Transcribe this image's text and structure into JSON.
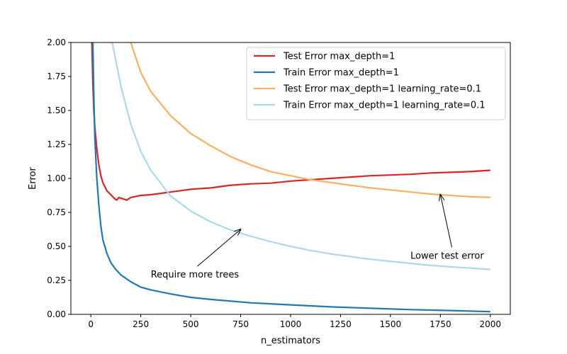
{
  "chart_data": {
    "type": "line",
    "xlabel": "n_estimators",
    "ylabel": "Error",
    "xlim": [
      -100,
      2100
    ],
    "ylim": [
      0,
      2.0
    ],
    "x_ticks": [
      0,
      250,
      500,
      750,
      1000,
      1250,
      1500,
      1750,
      2000
    ],
    "y_ticks": [
      0.0,
      0.25,
      0.5,
      0.75,
      1.0,
      1.25,
      1.5,
      1.75,
      2.0
    ],
    "x_tick_labels": [
      "0",
      "250",
      "500",
      "750",
      "1000",
      "1250",
      "1500",
      "1750",
      "2000"
    ],
    "y_tick_labels": [
      "0.00",
      "0.25",
      "0.50",
      "0.75",
      "1.00",
      "1.25",
      "1.50",
      "1.75",
      "2.00"
    ],
    "legend_position": "top-right",
    "grid": false,
    "series": [
      {
        "name": "Test Error max_depth=1",
        "color": "#d62728",
        "x": [
          0,
          5,
          10,
          15,
          20,
          30,
          40,
          50,
          60,
          70,
          80,
          100,
          120,
          130,
          140,
          160,
          180,
          200,
          250,
          300,
          350,
          400,
          450,
          500,
          600,
          700,
          800,
          900,
          1000,
          1100,
          1200,
          1300,
          1400,
          1500,
          1600,
          1700,
          1800,
          1900,
          2000
        ],
        "values": [
          2.6,
          2.0,
          1.7,
          1.5,
          1.38,
          1.22,
          1.1,
          1.02,
          0.97,
          0.94,
          0.91,
          0.88,
          0.85,
          0.84,
          0.86,
          0.85,
          0.84,
          0.86,
          0.875,
          0.88,
          0.89,
          0.9,
          0.91,
          0.92,
          0.93,
          0.95,
          0.96,
          0.965,
          0.98,
          0.99,
          1.0,
          1.01,
          1.02,
          1.025,
          1.03,
          1.04,
          1.045,
          1.05,
          1.06
        ]
      },
      {
        "name": "Train Error max_depth=1",
        "color": "#1f77b4",
        "x": [
          5,
          10,
          15,
          20,
          30,
          40,
          50,
          60,
          80,
          100,
          125,
          150,
          200,
          250,
          300,
          400,
          500,
          600,
          800,
          1000,
          1200,
          1400,
          1600,
          1800,
          2000
        ],
        "values": [
          2.6,
          2.0,
          1.6,
          1.3,
          1.0,
          0.8,
          0.65,
          0.55,
          0.45,
          0.38,
          0.33,
          0.29,
          0.24,
          0.2,
          0.18,
          0.15,
          0.125,
          0.11,
          0.085,
          0.07,
          0.055,
          0.045,
          0.035,
          0.028,
          0.02
        ]
      },
      {
        "name": "Test Error max_depth=1 learning_rate=0.1",
        "color": "#fdae61",
        "x": [
          200,
          250,
          300,
          400,
          500,
          600,
          700,
          800,
          900,
          1000,
          1100,
          1200,
          1300,
          1400,
          1500,
          1600,
          1700,
          1800,
          1900,
          2000
        ],
        "values": [
          2.0,
          1.78,
          1.64,
          1.46,
          1.33,
          1.24,
          1.16,
          1.1,
          1.05,
          1.02,
          0.99,
          0.97,
          0.95,
          0.93,
          0.915,
          0.9,
          0.885,
          0.875,
          0.865,
          0.86
        ]
      },
      {
        "name": "Train Error max_depth=1 learning_rate=0.1",
        "color": "#abd9e9",
        "x": [
          100,
          150,
          200,
          250,
          300,
          400,
          500,
          600,
          700,
          800,
          900,
          1000,
          1100,
          1200,
          1300,
          1400,
          1500,
          1600,
          1700,
          1800,
          1900,
          2000
        ],
        "values": [
          2.05,
          1.68,
          1.4,
          1.2,
          1.06,
          0.87,
          0.76,
          0.68,
          0.62,
          0.575,
          0.535,
          0.5,
          0.47,
          0.445,
          0.425,
          0.405,
          0.39,
          0.375,
          0.36,
          0.35,
          0.34,
          0.33
        ]
      }
    ],
    "annotations": [
      {
        "text": "Require more trees",
        "text_x": 300,
        "text_y": 0.27,
        "arrow_x": 750,
        "arrow_y": 0.625
      },
      {
        "text": "Lower test error",
        "text_x": 1600,
        "text_y": 0.41,
        "arrow_x": 1750,
        "arrow_y": 0.88
      }
    ]
  }
}
